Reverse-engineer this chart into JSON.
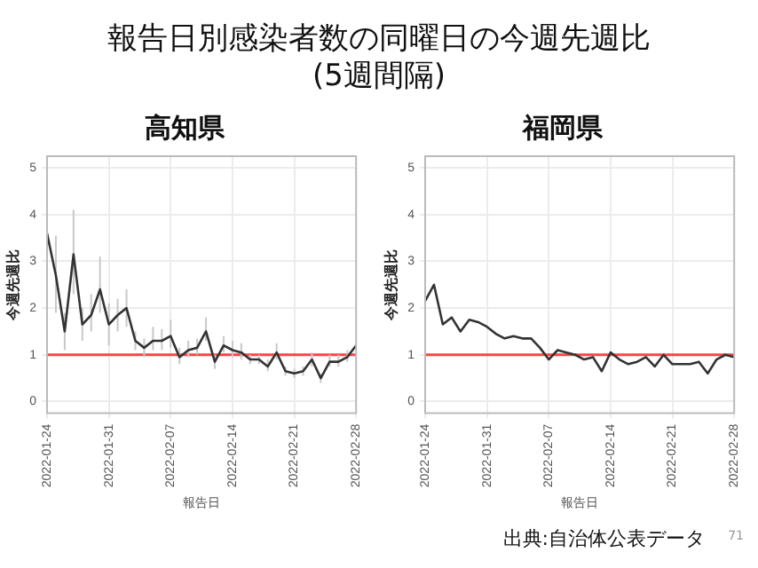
{
  "chart_data": [
    {
      "type": "other",
      "title": "報告日別感染者数の同曜日の今週先週比\n(5週間隔)",
      "annotations": [
        "出典:自治体公表データ",
        "71"
      ]
    },
    {
      "type": "line",
      "title": "高知県",
      "xlabel": "報告日",
      "ylabel": "今週先週比",
      "color": "#333333",
      "grid": true,
      "x": [
        "2022-01-24",
        "2022-01-25",
        "2022-01-26",
        "2022-01-27",
        "2022-01-28",
        "2022-01-29",
        "2022-01-30",
        "2022-01-31",
        "2022-02-01",
        "2022-02-02",
        "2022-02-03",
        "2022-02-04",
        "2022-02-05",
        "2022-02-06",
        "2022-02-07",
        "2022-02-08",
        "2022-02-09",
        "2022-02-10",
        "2022-02-11",
        "2022-02-12",
        "2022-02-13",
        "2022-02-14",
        "2022-02-15",
        "2022-02-16",
        "2022-02-17",
        "2022-02-18",
        "2022-02-19",
        "2022-02-20",
        "2022-02-21",
        "2022-02-22",
        "2022-02-23",
        "2022-02-24",
        "2022-02-25",
        "2022-02-26",
        "2022-02-27",
        "2022-02-28"
      ],
      "values": [
        3.6,
        2.7,
        1.5,
        3.15,
        1.65,
        1.85,
        2.4,
        1.65,
        1.85,
        2.0,
        1.3,
        1.15,
        1.3,
        1.3,
        1.4,
        0.95,
        1.1,
        1.15,
        1.5,
        0.85,
        1.2,
        1.1,
        1.05,
        0.9,
        0.9,
        0.75,
        1.05,
        0.65,
        0.6,
        0.65,
        0.9,
        0.5,
        0.85,
        0.85,
        0.95,
        1.2
      ],
      "errors": [
        null,
        [
          1.9,
          3.55
        ],
        [
          1.1,
          1.9
        ],
        [
          2.3,
          4.1
        ],
        [
          1.3,
          2.0
        ],
        [
          1.5,
          2.3
        ],
        [
          1.9,
          3.1
        ],
        [
          1.2,
          2.1
        ],
        [
          1.5,
          2.2
        ],
        [
          1.6,
          2.4
        ],
        [
          1.1,
          1.5
        ],
        [
          0.95,
          1.35
        ],
        [
          1.1,
          1.6
        ],
        [
          1.1,
          1.55
        ],
        [
          1.15,
          1.75
        ],
        [
          0.8,
          1.15
        ],
        [
          0.95,
          1.3
        ],
        [
          1.0,
          1.35
        ],
        [
          1.3,
          1.8
        ],
        [
          0.7,
          1.0
        ],
        [
          1.05,
          1.4
        ],
        [
          0.95,
          1.3
        ],
        [
          0.9,
          1.25
        ],
        [
          0.8,
          1.0
        ],
        [
          0.8,
          1.0
        ],
        [
          0.65,
          0.9
        ],
        [
          0.9,
          1.25
        ],
        [
          0.55,
          0.75
        ],
        [
          0.5,
          0.7
        ],
        [
          0.55,
          0.75
        ],
        [
          0.75,
          1.05
        ],
        [
          0.4,
          0.6
        ],
        [
          0.75,
          1.0
        ],
        [
          0.75,
          1.0
        ],
        [
          0.85,
          1.1
        ],
        null
      ],
      "xlim": [
        "2022-01-24",
        "2022-02-28"
      ],
      "xticks": [
        "2022-01-24",
        "2022-01-31",
        "2022-02-07",
        "2022-02-14",
        "2022-02-21",
        "2022-02-28"
      ],
      "ylim": [
        -0.25,
        5.25
      ],
      "yticks": [
        0,
        1,
        2,
        3,
        4,
        5
      ],
      "ref_lines": [
        {
          "axis": "y",
          "value": 1,
          "color": "#ff4444"
        }
      ]
    },
    {
      "type": "line",
      "title": "福岡県",
      "xlabel": "報告日",
      "ylabel": "今週先週比",
      "color": "#333333",
      "grid": true,
      "x": [
        "2022-01-24",
        "2022-01-25",
        "2022-01-26",
        "2022-01-27",
        "2022-01-28",
        "2022-01-29",
        "2022-01-30",
        "2022-01-31",
        "2022-02-01",
        "2022-02-02",
        "2022-02-03",
        "2022-02-04",
        "2022-02-05",
        "2022-02-06",
        "2022-02-07",
        "2022-02-08",
        "2022-02-09",
        "2022-02-10",
        "2022-02-11",
        "2022-02-12",
        "2022-02-13",
        "2022-02-14",
        "2022-02-15",
        "2022-02-16",
        "2022-02-17",
        "2022-02-18",
        "2022-02-19",
        "2022-02-20",
        "2022-02-21",
        "2022-02-22",
        "2022-02-23",
        "2022-02-24",
        "2022-02-25",
        "2022-02-26",
        "2022-02-27",
        "2022-02-28"
      ],
      "values": [
        2.15,
        2.5,
        1.65,
        1.8,
        1.5,
        1.75,
        1.7,
        1.6,
        1.45,
        1.35,
        1.4,
        1.35,
        1.35,
        1.15,
        0.9,
        1.1,
        1.05,
        1.0,
        0.9,
        0.95,
        0.65,
        1.05,
        0.9,
        0.8,
        0.85,
        0.95,
        0.75,
        1.0,
        0.8,
        0.8,
        0.8,
        0.85,
        0.6,
        0.9,
        1.0,
        0.95
      ],
      "xlim": [
        "2022-01-24",
        "2022-02-28"
      ],
      "xticks": [
        "2022-01-24",
        "2022-01-31",
        "2022-02-07",
        "2022-02-14",
        "2022-02-21",
        "2022-02-28"
      ],
      "ylim": [
        -0.25,
        5.25
      ],
      "yticks": [
        0,
        1,
        2,
        3,
        4,
        5
      ],
      "ref_lines": [
        {
          "axis": "y",
          "value": 1,
          "color": "#ff4444"
        }
      ]
    }
  ]
}
